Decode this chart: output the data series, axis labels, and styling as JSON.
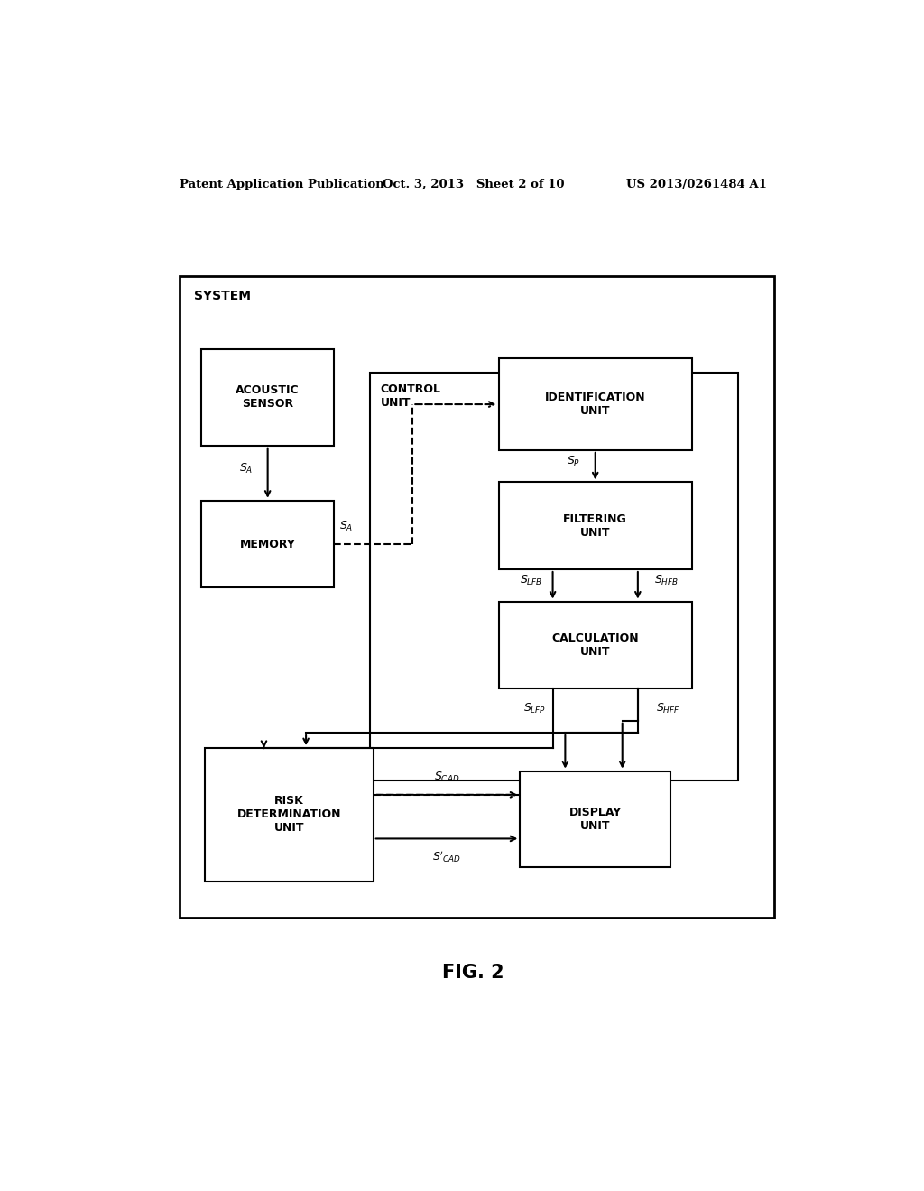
{
  "bg_color": "#ffffff",
  "header_left": "Patent Application Publication",
  "header_mid": "Oct. 3, 2013   Sheet 2 of 10",
  "header_right": "US 2013/0261484 A1",
  "fig_label": "FIG. 2",
  "system_label": "SYSTEM",
  "control_label": "CONTROL\nUNIT"
}
